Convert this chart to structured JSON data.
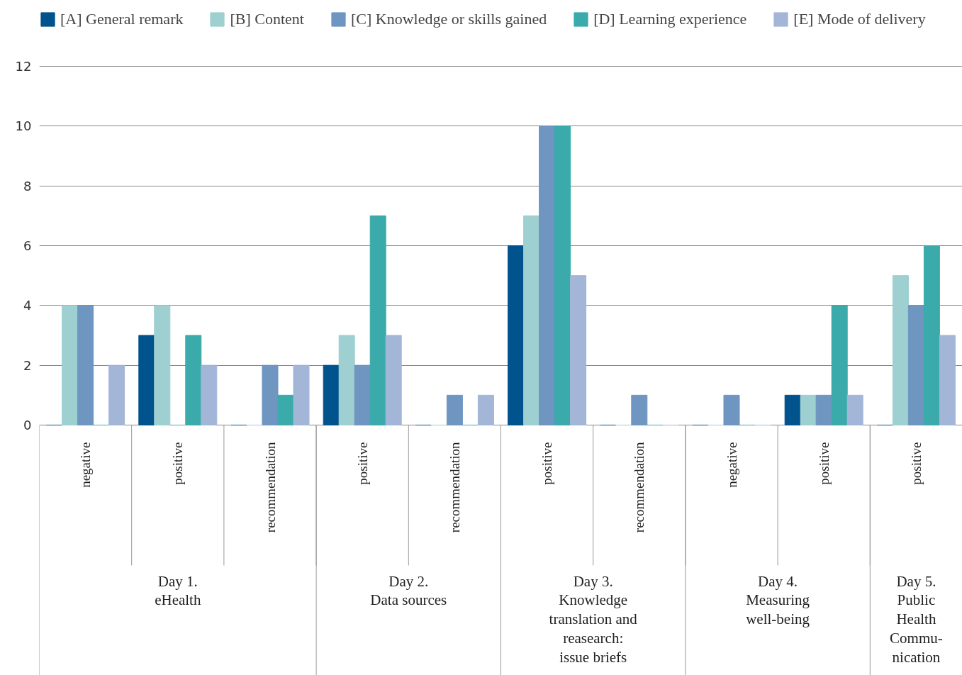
{
  "chart_data": {
    "type": "bar",
    "categories": [
      "negative",
      "positive",
      "recommendation",
      "positive",
      "recommendation",
      "positive",
      "recommendation",
      "negative",
      "positive",
      "positive"
    ],
    "annotations": [
      "Day 1.\neHealth",
      "Day 2.\nData sources",
      "Day 3.\nKnowledge\ntranslation and\nreasearch:\nissue briefs",
      "Day 4.\nMeasuring\nwell-being",
      "Day 5.\nPublic\nHealth\nCommu-\nnication"
    ],
    "series": [
      {
        "name": "[A] General remark",
        "color": "#00538c",
        "values": [
          0,
          3,
          0,
          2,
          0,
          6,
          0,
          0,
          1,
          0
        ]
      },
      {
        "name": "[B] Content",
        "color": "#9ecfd1",
        "values": [
          4,
          4,
          0,
          3,
          0,
          7,
          0,
          0,
          1,
          5
        ]
      },
      {
        "name": "[C] Knowledge or skills gained",
        "color": "#6f95c1",
        "values": [
          4,
          0,
          2,
          2,
          1,
          10,
          1,
          1,
          1,
          4
        ]
      },
      {
        "name": "[D] Learning experience",
        "color": "#3aabaa",
        "values": [
          0,
          3,
          1,
          7,
          0,
          10,
          0,
          0,
          4,
          6
        ]
      },
      {
        "name": "[E] Mode of delivery",
        "color": "#a3b6d8",
        "values": [
          2,
          2,
          2,
          3,
          1,
          5,
          0,
          0,
          1,
          3
        ]
      }
    ],
    "ylim": [
      0,
      12
    ],
    "yticks": [
      0,
      2,
      4,
      6,
      8,
      10,
      12
    ],
    "grid": "y",
    "legend": "top"
  }
}
